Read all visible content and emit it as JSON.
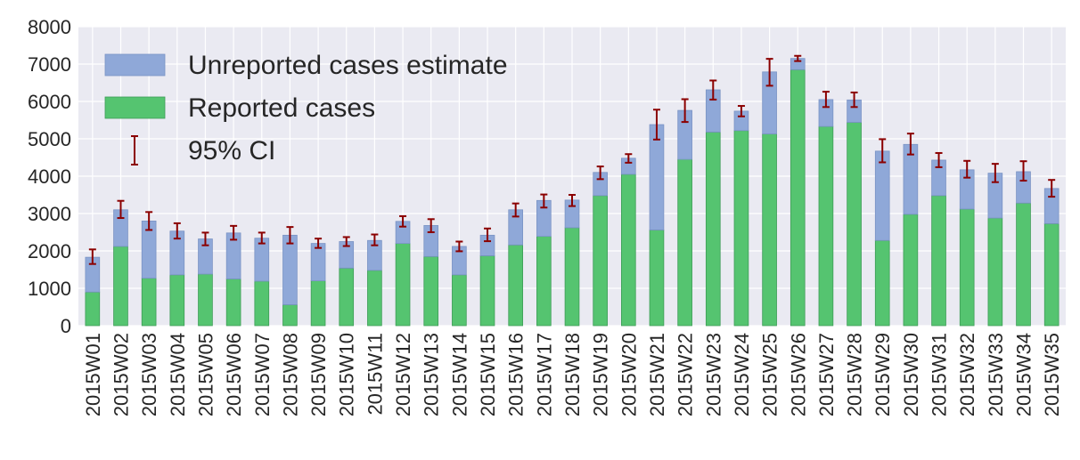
{
  "chart_data": {
    "type": "bar",
    "stacked": true,
    "title": "",
    "xlabel": "",
    "ylabel": "",
    "ylim": [
      0,
      8000
    ],
    "yticks": [
      0,
      1000,
      2000,
      3000,
      4000,
      5000,
      6000,
      7000,
      8000
    ],
    "grid": true,
    "legend_position": "top-left",
    "categories": [
      "2015W01",
      "2015W02",
      "2015W03",
      "2015W04",
      "2015W05",
      "2015W06",
      "2015W07",
      "2015W08",
      "2015W09",
      "2015W10",
      "2015W11",
      "2015W12",
      "2015W13",
      "2015W14",
      "2015W15",
      "2015W16",
      "2015W17",
      "2015W18",
      "2015W19",
      "2015W20",
      "2015W21",
      "2015W22",
      "2015W23",
      "2015W24",
      "2015W25",
      "2015W26",
      "2015W27",
      "2015W28",
      "2015W29",
      "2015W30",
      "2015W31",
      "2015W32",
      "2015W33",
      "2015W34",
      "2015W35"
    ],
    "series": [
      {
        "name": "Reported cases",
        "color": "#55c470",
        "values": [
          900,
          2120,
          1270,
          1360,
          1380,
          1250,
          1190,
          560,
          1200,
          1540,
          1480,
          2200,
          1850,
          1360,
          1870,
          2160,
          2390,
          2620,
          3480,
          4050,
          2560,
          4450,
          5180,
          5220,
          5130,
          6850,
          5330,
          5440,
          2280,
          2980,
          3480,
          3120,
          2880,
          3280,
          2730
        ]
      },
      {
        "name": "Unreported cases estimate",
        "color": "#8fa8d8",
        "totals": [
          1830,
          3100,
          2800,
          2530,
          2320,
          2480,
          2340,
          2420,
          2200,
          2250,
          2280,
          2790,
          2680,
          2120,
          2420,
          3100,
          3350,
          3360,
          4100,
          4480,
          5380,
          5760,
          6310,
          5740,
          6790,
          7150,
          6050,
          6040,
          4670,
          4850,
          4430,
          4170,
          4080,
          4120,
          3670
        ]
      }
    ],
    "error_bars": {
      "name": "95% CI",
      "color": "#8b0000",
      "lower": [
        1650,
        2880,
        2560,
        2330,
        2150,
        2300,
        2200,
        2200,
        2080,
        2130,
        2150,
        2650,
        2500,
        1990,
        2260,
        2920,
        3160,
        3200,
        3920,
        4360,
        4980,
        5450,
        6050,
        5600,
        6420,
        7080,
        5850,
        5850,
        4370,
        4580,
        4240,
        3960,
        3840,
        3880,
        3450
      ],
      "upper": [
        2040,
        3340,
        3040,
        2740,
        2490,
        2670,
        2490,
        2640,
        2330,
        2370,
        2440,
        2930,
        2850,
        2250,
        2600,
        3270,
        3510,
        3500,
        4260,
        4590,
        5780,
        6060,
        6560,
        5880,
        7140,
        7220,
        6260,
        6240,
        4990,
        5140,
        4620,
        4410,
        4330,
        4400,
        3900
      ]
    },
    "legend": [
      "Unreported cases estimate",
      "Reported cases",
      "95% CI"
    ]
  }
}
